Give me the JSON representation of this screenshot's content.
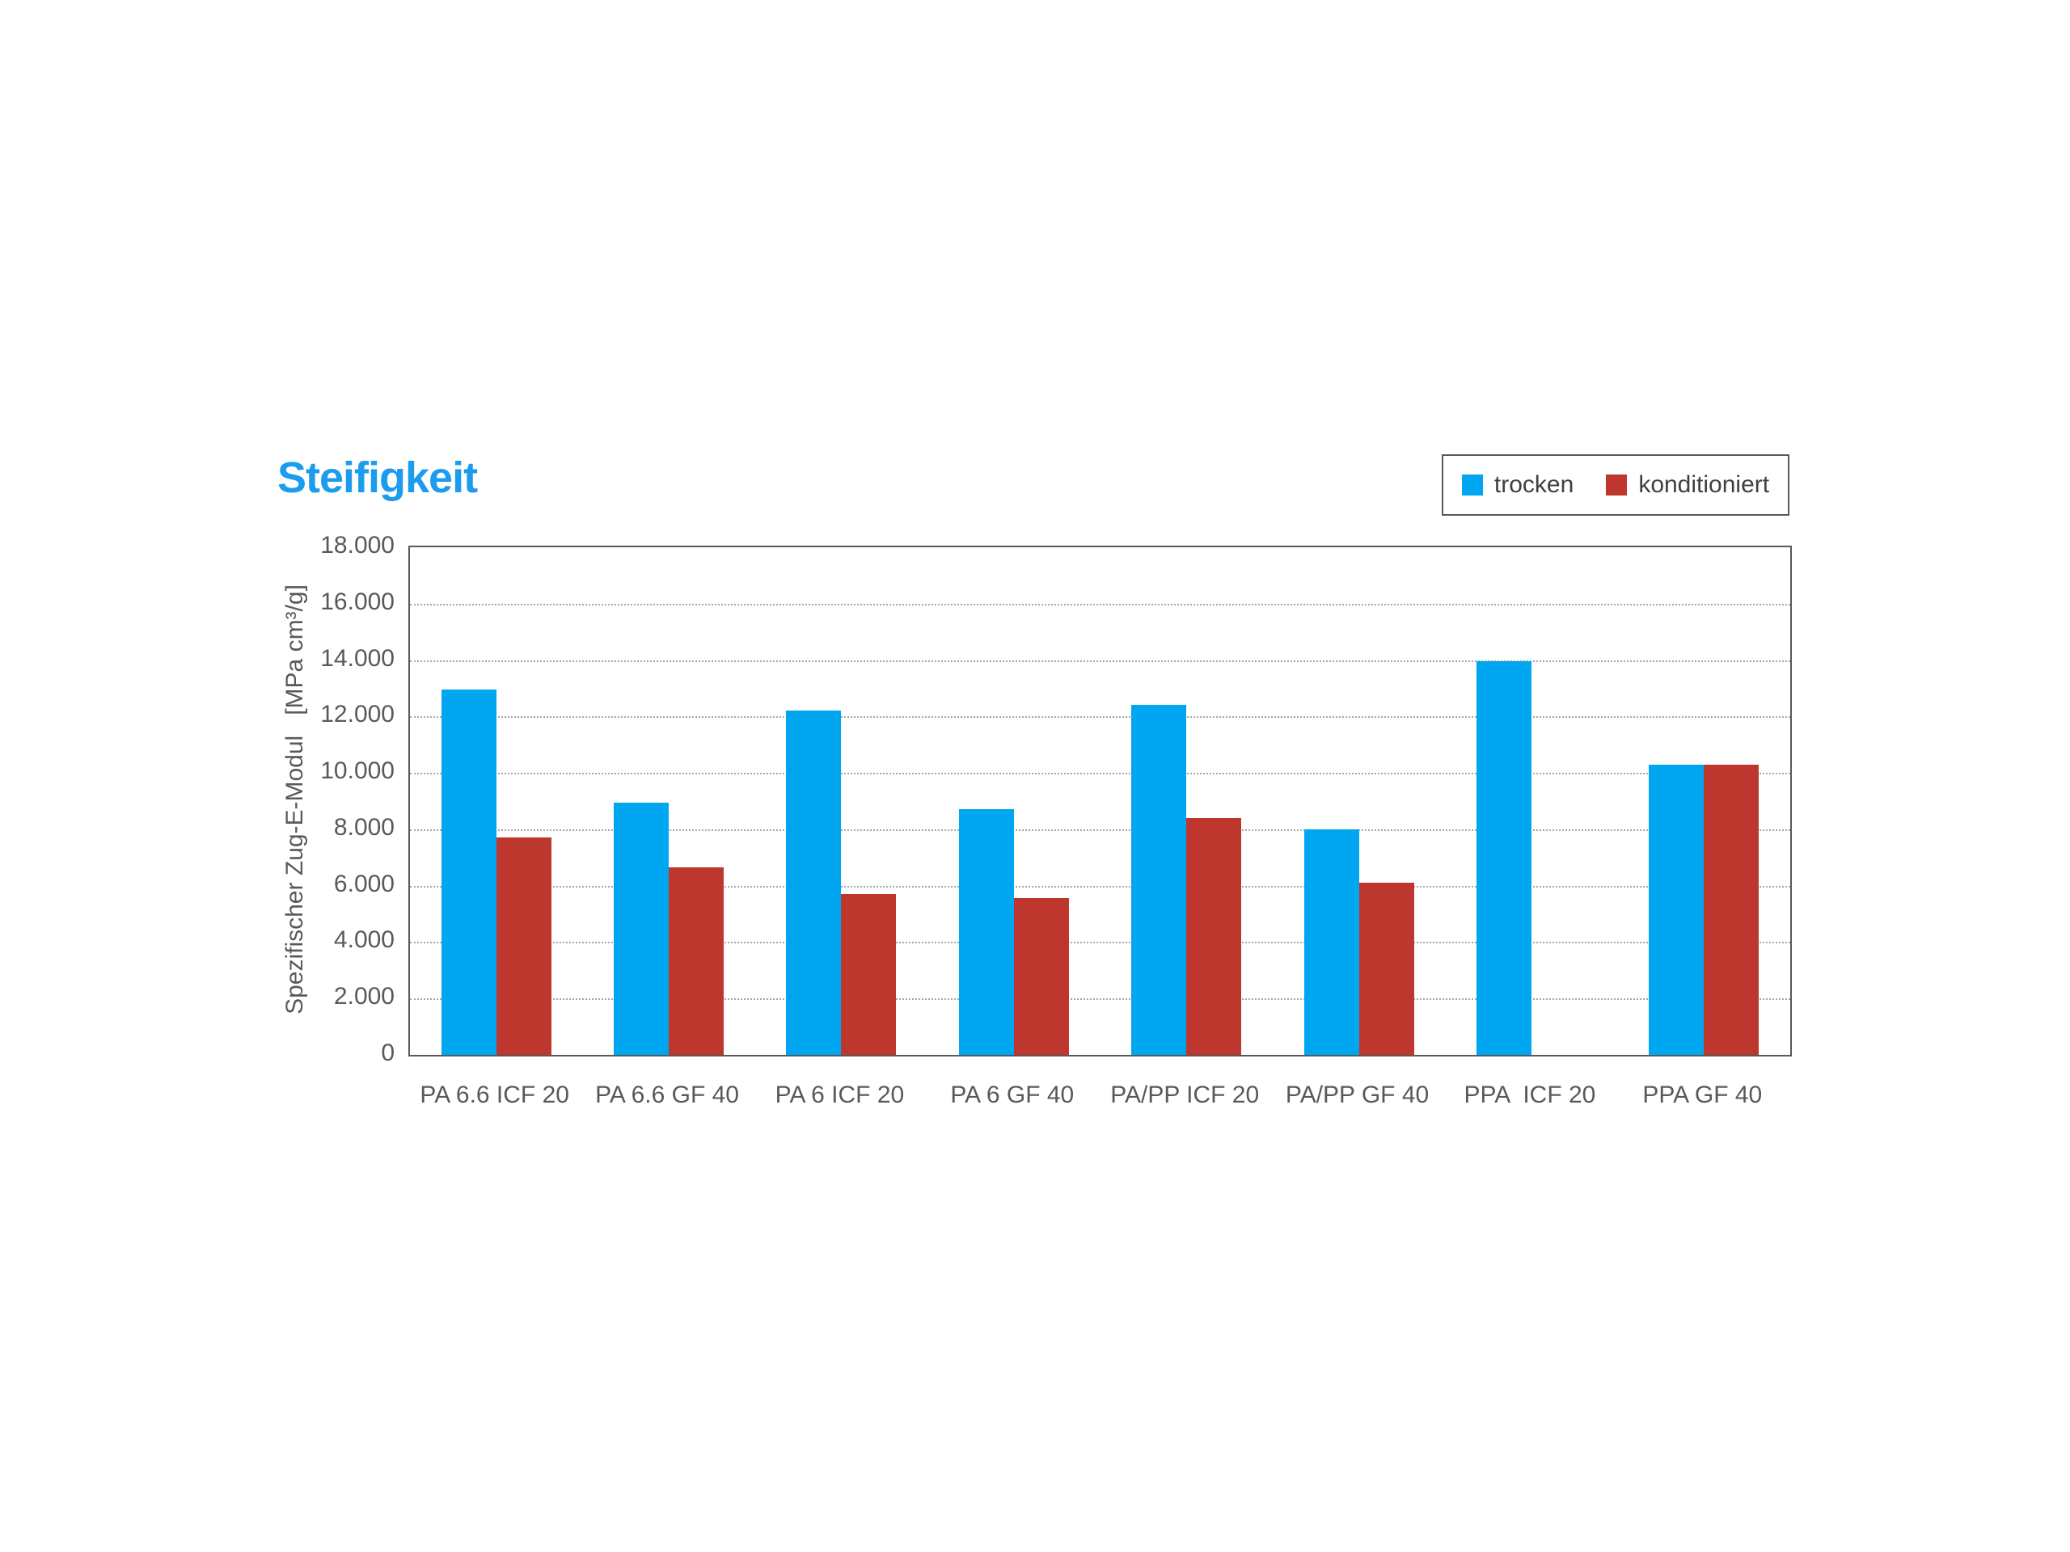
{
  "title": {
    "text": "Steifigkeit",
    "color": "#1B9CEC"
  },
  "colors": {
    "axis": "#595959",
    "gridline": "#A6A6A6",
    "tick_text": "#595959",
    "legend_text": "#404040",
    "background": "#FFFFFF"
  },
  "chart_data": {
    "type": "bar",
    "title": "Steifigkeit",
    "xlabel": "",
    "ylabel": "Spezifischer Zug-E-Modul   [MPa cm³/g]",
    "ylim": [
      0,
      18000
    ],
    "ytick_step": 2000,
    "ytick_labels": [
      "0",
      "2.000",
      "4.000",
      "6.000",
      "8.000",
      "10.000",
      "12.000",
      "14.000",
      "16.000",
      "18.000"
    ],
    "grid": "horizontal-dotted",
    "legend_position": "top-right",
    "categories": [
      "PA 6.6 ICF 20",
      "PA 6.6 GF 40",
      "PA 6 ICF 20",
      "PA 6 GF 40",
      "PA/PP ICF 20",
      "PA/PP GF 40",
      "PPA  ICF 20",
      "PPA GF 40"
    ],
    "series": [
      {
        "name": "trocken",
        "color": "#00A7F0",
        "values": [
          12950,
          8950,
          12200,
          8700,
          12400,
          8000,
          13950,
          10300
        ]
      },
      {
        "name": "konditioniert",
        "color": "#BE372F",
        "values": [
          7700,
          6650,
          5700,
          5550,
          8400,
          6100,
          null,
          10300
        ]
      }
    ]
  }
}
